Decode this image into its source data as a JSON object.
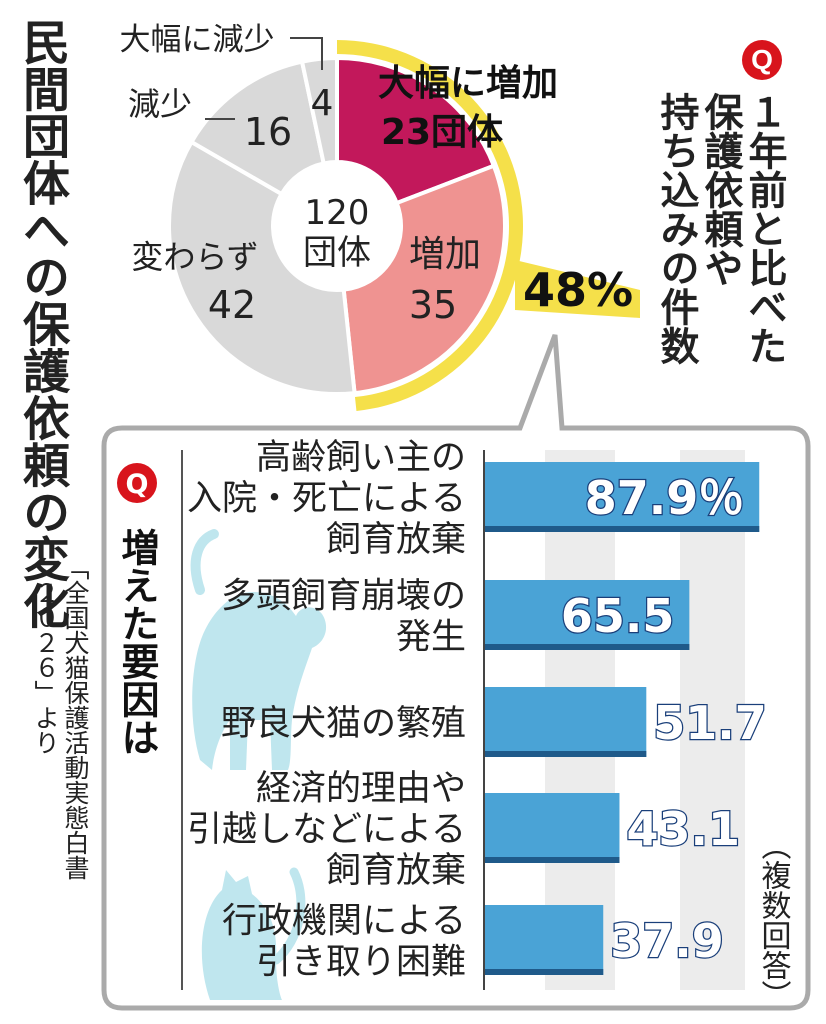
{
  "title": "民間団体への保護依頼の変化",
  "source": [
    "「全国犬猫保護活動実態白書",
    "２０２６」より"
  ],
  "q_badge": "Q",
  "q1": {
    "lines": [
      "１年前と比べた",
      "保護依頼や",
      "持ち込みの件数"
    ]
  },
  "q2": {
    "label": "増えた要因は",
    "note": "（複数回答）"
  },
  "colors": {
    "greatly_increase": "#c2185b",
    "increase": "#ef9391",
    "no_change": "#d9d9d9",
    "decrease": "#d9d9d9",
    "highlight": "#f5e04a",
    "bar": "#4aa3d6",
    "bar_text": "#1a3f7a",
    "badge": "#d8141c",
    "silhouette": "#bfe6ee"
  },
  "chart_data": [
    {
      "type": "pie",
      "center_label": [
        "120",
        "団体"
      ],
      "slices": [
        {
          "name": "大幅に増加",
          "value": 23,
          "value_label": "23団体"
        },
        {
          "name": "増加",
          "value": 35,
          "value_label": "35"
        },
        {
          "name": "変わらず",
          "value": 42,
          "value_label": "42"
        },
        {
          "name": "減少",
          "value": 16,
          "value_label": "16"
        },
        {
          "name": "大幅に減少",
          "value": 4,
          "value_label": "4"
        }
      ],
      "highlight_label": "48%"
    },
    {
      "type": "bar",
      "orientation": "horizontal",
      "categories": [
        [
          "高齢飼い主の",
          "入院・死亡による",
          "飼育放棄"
        ],
        [
          "多頭飼育崩壊の",
          "発生"
        ],
        [
          "野良犬猫の繁殖"
        ],
        [
          "経済的理由や",
          "引越しなどによる",
          "飼育放棄"
        ],
        [
          "行政機関による",
          "引き取り困難"
        ]
      ],
      "values": [
        87.9,
        65.5,
        51.7,
        43.1,
        37.9
      ],
      "value_labels": [
        "87.9％",
        "65.5",
        "51.7",
        "43.1",
        "37.9"
      ],
      "xlim": [
        0,
        100
      ]
    }
  ]
}
